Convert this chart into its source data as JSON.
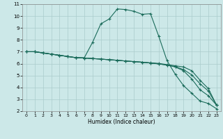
{
  "xlabel": "Humidex (Indice chaleur)",
  "bg_color": "#cce8e8",
  "grid_color": "#aacccc",
  "line_color": "#1a6b5a",
  "xlim": [
    -0.5,
    23.5
  ],
  "ylim": [
    2,
    11
  ],
  "yticks": [
    2,
    3,
    4,
    5,
    6,
    7,
    8,
    9,
    10,
    11
  ],
  "xticks": [
    0,
    1,
    2,
    3,
    4,
    5,
    6,
    7,
    8,
    9,
    10,
    11,
    12,
    13,
    14,
    15,
    16,
    17,
    18,
    19,
    20,
    21,
    22,
    23
  ],
  "line1_x": [
    0,
    1,
    2,
    3,
    4,
    5,
    6,
    7,
    8,
    9,
    10,
    11,
    12,
    13,
    14,
    15,
    16,
    17,
    18,
    19,
    20,
    21,
    22,
    23
  ],
  "line1_y": [
    7.0,
    7.0,
    6.9,
    6.8,
    6.7,
    6.6,
    6.5,
    6.5,
    7.8,
    9.35,
    9.75,
    10.6,
    10.55,
    10.4,
    10.15,
    10.2,
    8.3,
    6.25,
    5.1,
    4.15,
    3.5,
    2.85,
    2.65,
    2.2
  ],
  "line2_x": [
    0,
    1,
    2,
    3,
    4,
    5,
    6,
    7,
    8,
    9,
    10,
    11,
    12,
    13,
    14,
    15,
    16,
    17,
    18,
    19,
    20,
    21,
    22,
    23
  ],
  "line2_y": [
    7.0,
    7.0,
    6.9,
    6.8,
    6.7,
    6.6,
    6.5,
    6.47,
    6.43,
    6.38,
    6.33,
    6.28,
    6.22,
    6.17,
    6.12,
    6.07,
    6.02,
    5.92,
    5.82,
    5.72,
    5.4,
    4.6,
    3.9,
    2.5
  ],
  "line3_x": [
    0,
    1,
    2,
    3,
    4,
    5,
    6,
    7,
    8,
    9,
    10,
    11,
    12,
    13,
    14,
    15,
    16,
    17,
    18,
    19,
    20,
    21,
    22,
    23
  ],
  "line3_y": [
    7.0,
    7.0,
    6.9,
    6.8,
    6.7,
    6.6,
    6.5,
    6.47,
    6.43,
    6.38,
    6.33,
    6.28,
    6.22,
    6.17,
    6.12,
    6.05,
    5.98,
    5.88,
    5.72,
    5.4,
    4.7,
    3.8,
    3.3,
    2.5
  ],
  "line4_x": [
    0,
    1,
    2,
    3,
    4,
    5,
    6,
    7,
    8,
    9,
    10,
    11,
    12,
    13,
    14,
    15,
    16,
    17,
    18,
    19,
    20,
    21,
    22,
    23
  ],
  "line4_y": [
    7.0,
    7.0,
    6.9,
    6.8,
    6.7,
    6.6,
    6.5,
    6.47,
    6.43,
    6.38,
    6.33,
    6.28,
    6.22,
    6.17,
    6.12,
    6.05,
    5.98,
    5.88,
    5.75,
    5.5,
    5.05,
    4.3,
    3.7,
    2.5
  ]
}
